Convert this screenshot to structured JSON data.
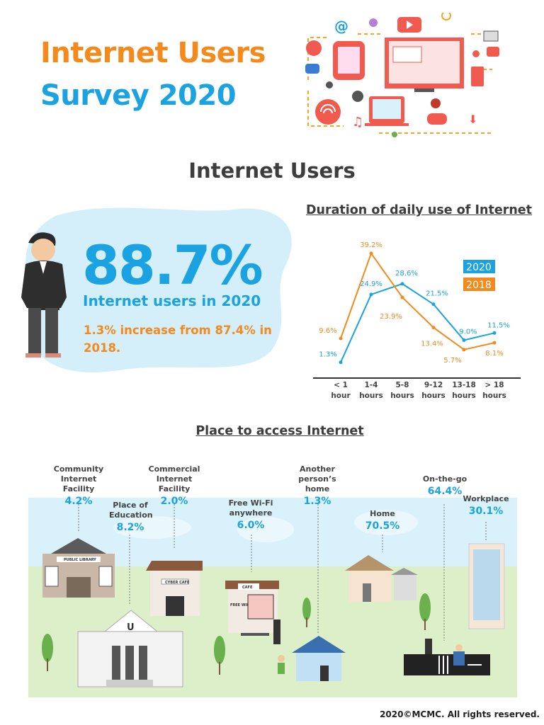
{
  "header": {
    "title_line1": "Internet Users",
    "title_line2": "Survey 2020"
  },
  "section_internet_users": {
    "heading": "Internet Users",
    "headline_value": "88.7%",
    "headline_label": "Internet users in 2020",
    "increase_text": "1.3% increase from 87.4% in 2018."
  },
  "chart_data": {
    "type": "line",
    "title": "Duration of daily use of Internet",
    "categories": [
      "< 1 hour",
      "1-4 hours",
      "5-8 hours",
      "9-12 hours",
      "13-18 hours",
      "> 18 hours"
    ],
    "category_lines": [
      [
        "< 1",
        "hour"
      ],
      [
        "1-4",
        "hours"
      ],
      [
        "5-8",
        "hours"
      ],
      [
        "9-12",
        "hours"
      ],
      [
        "13-18",
        "hours"
      ],
      [
        "> 18",
        "hours"
      ]
    ],
    "series": [
      {
        "name": "2020",
        "color": "#1aa3e0",
        "values": [
          1.3,
          24.9,
          28.6,
          21.5,
          9.0,
          11.5
        ],
        "labels": [
          "1.3%",
          "24.9%",
          "28.6%",
          "21.5%",
          "9.0%",
          "11.5%"
        ]
      },
      {
        "name": "2018",
        "color": "#f28a1e",
        "values": [
          9.6,
          39.2,
          23.9,
          13.4,
          5.7,
          8.1
        ],
        "labels": [
          "9.6%",
          "39.2%",
          "23.9%",
          "13.4%",
          "5.7%",
          "8.1%"
        ]
      }
    ],
    "legend": "right",
    "grid": false
  },
  "places": {
    "title": "Place to access Internet",
    "items": [
      {
        "label": "Community Internet Facility",
        "value": "4.2%"
      },
      {
        "label": "Commercial Internet Facility",
        "value": "2.0%"
      },
      {
        "label": "Another person’s home",
        "value": "1.3%"
      },
      {
        "label": "On-the-go",
        "value": "64.4%"
      },
      {
        "label": "Place of Education",
        "value": "8.2%"
      },
      {
        "label": "Free Wi-Fi anywhere",
        "value": "6.0%"
      },
      {
        "label": "Home",
        "value": "70.5%"
      },
      {
        "label": "Workplace",
        "value": "30.1%"
      }
    ],
    "signs": {
      "library": "PUBLIC LIBRARY",
      "cyber": "CYBER CAFE",
      "cafe": "CAFE",
      "wifi": "FREE WIFI",
      "uni": "U"
    }
  },
  "footer": {
    "copyright": "2020©MCMC. All rights reserved."
  },
  "colors": {
    "orange": "#f28a1e",
    "blue": "#1aa3e0",
    "sky": "#d9f1fb",
    "ground": "#dcefc9"
  }
}
